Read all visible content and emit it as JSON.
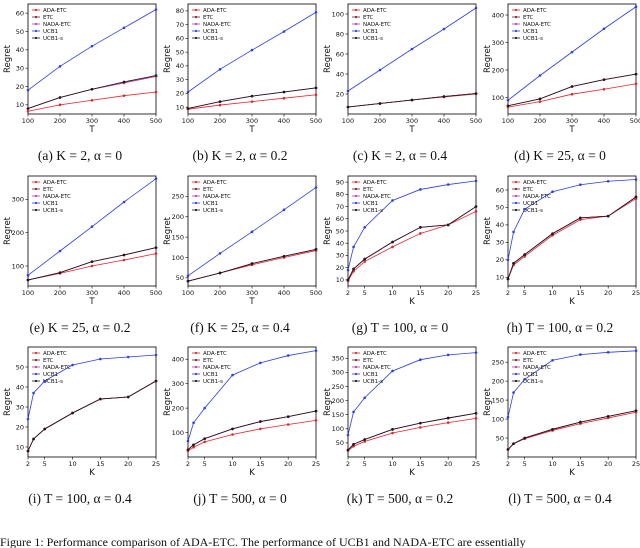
{
  "figure": {
    "footer_text": "Figure 1: Performance comparison of ADA-ETC. The performance of UCB1 and NADA-ETC are essentially"
  },
  "colors": {
    "ADA-ETC": "#e3242b",
    "ETC": "#7a1f2b",
    "NADA-ETC": "#c03aa6",
    "UCB1": "#2b3ee6",
    "UCB1-s": "#1a1a1a"
  },
  "chart_data": [
    {
      "type": "line",
      "panel": "a",
      "caption": "(a) K = 2, α = 0",
      "xlabel": "T",
      "ylabel": "Regret",
      "legend_position": "top-left",
      "x": [
        100,
        200,
        300,
        400,
        500
      ],
      "xlim": [
        100,
        500
      ],
      "ylim": [
        5,
        65
      ],
      "xticks": [
        100,
        200,
        300,
        400,
        500
      ],
      "yticks": [
        10,
        20,
        30,
        40,
        50,
        60
      ],
      "series": [
        {
          "name": "ADA-ETC",
          "values": [
            6.5,
            10,
            12.5,
            15,
            17
          ]
        },
        {
          "name": "ETC",
          "values": [
            8,
            14,
            18.5,
            22,
            25.5
          ]
        },
        {
          "name": "NADA-ETC",
          "values": [
            8,
            14,
            18.5,
            22,
            25.5
          ]
        },
        {
          "name": "UCB1",
          "values": [
            18,
            31,
            42,
            52,
            62
          ]
        },
        {
          "name": "UCB1-s",
          "values": [
            8,
            14,
            18.5,
            22.5,
            26
          ]
        }
      ]
    },
    {
      "type": "line",
      "panel": "b",
      "caption": "(b) K = 2, α = 0.2",
      "xlabel": "T",
      "ylabel": "Regret",
      "legend_position": "top-left",
      "x": [
        100,
        200,
        300,
        400,
        500
      ],
      "xlim": [
        100,
        500
      ],
      "ylim": [
        5,
        85
      ],
      "xticks": [
        100,
        200,
        300,
        400,
        500
      ],
      "yticks": [
        10,
        20,
        30,
        40,
        50,
        60,
        70,
        80
      ],
      "series": [
        {
          "name": "ADA-ETC",
          "values": [
            8.5,
            11.5,
            14,
            16.5,
            19
          ]
        },
        {
          "name": "ETC",
          "values": [
            9,
            14,
            18,
            21,
            24
          ]
        },
        {
          "name": "NADA-ETC",
          "values": [
            9,
            14,
            18,
            21,
            24
          ]
        },
        {
          "name": "UCB1",
          "values": [
            21,
            37.5,
            51.5,
            65,
            79
          ]
        },
        {
          "name": "UCB1-s",
          "values": [
            9,
            14,
            18,
            21,
            24
          ]
        }
      ]
    },
    {
      "type": "line",
      "panel": "c",
      "caption": "(c) K = 2, α = 0.4",
      "xlabel": "T",
      "ylabel": "Regret",
      "legend_position": "top-left",
      "x": [
        100,
        200,
        300,
        400,
        500
      ],
      "xlim": [
        100,
        500
      ],
      "ylim": [
        0,
        110
      ],
      "xticks": [
        100,
        200,
        300,
        400,
        500
      ],
      "yticks": [
        20,
        40,
        60,
        80,
        100
      ],
      "series": [
        {
          "name": "ADA-ETC",
          "values": [
            7,
            10.5,
            14,
            17,
            20
          ]
        },
        {
          "name": "ETC",
          "values": [
            7,
            10.5,
            14,
            17.5,
            20.5
          ]
        },
        {
          "name": "NADA-ETC",
          "values": [
            7,
            10.5,
            14,
            17.5,
            20.5
          ]
        },
        {
          "name": "UCB1",
          "values": [
            23,
            44,
            65,
            85,
            106
          ]
        },
        {
          "name": "UCB1-s",
          "values": [
            7,
            10.5,
            14,
            17.5,
            20.5
          ]
        }
      ]
    },
    {
      "type": "line",
      "panel": "d",
      "caption": "(d) K = 25, α = 0",
      "xlabel": "T",
      "ylabel": "Regret",
      "legend_position": "top-left",
      "x": [
        100,
        200,
        300,
        400,
        500
      ],
      "xlim": [
        100,
        500
      ],
      "ylim": [
        40,
        440
      ],
      "xticks": [
        100,
        200,
        300,
        400,
        500
      ],
      "yticks": [
        100,
        200,
        300,
        400
      ],
      "series": [
        {
          "name": "ADA-ETC",
          "values": [
            65,
            85,
            112,
            130,
            150
          ]
        },
        {
          "name": "ETC",
          "values": [
            70,
            95,
            140,
            165,
            185
          ]
        },
        {
          "name": "NADA-ETC",
          "values": [
            70,
            95,
            140,
            165,
            185
          ]
        },
        {
          "name": "UCB1",
          "values": [
            90,
            180,
            265,
            350,
            430
          ]
        },
        {
          "name": "UCB1-s",
          "values": [
            70,
            95,
            140,
            165,
            185
          ]
        }
      ]
    },
    {
      "type": "line",
      "panel": "e",
      "caption": "(e) K = 25, α = 0.2",
      "xlabel": "T",
      "ylabel": "Regret",
      "legend_position": "top-left",
      "x": [
        100,
        200,
        300,
        400,
        500
      ],
      "xlim": [
        100,
        500
      ],
      "ylim": [
        40,
        370
      ],
      "xticks": [
        100,
        200,
        300,
        400,
        500
      ],
      "yticks": [
        100,
        200,
        300
      ],
      "series": [
        {
          "name": "ADA-ETC",
          "values": [
            58,
            78,
            100,
            118,
            137
          ]
        },
        {
          "name": "ETC",
          "values": [
            58,
            80,
            113,
            133,
            155
          ]
        },
        {
          "name": "NADA-ETC",
          "values": [
            58,
            80,
            113,
            133,
            155
          ]
        },
        {
          "name": "UCB1",
          "values": [
            72,
            145,
            218,
            292,
            362
          ]
        },
        {
          "name": "UCB1-s",
          "values": [
            58,
            80,
            113,
            133,
            155
          ]
        }
      ]
    },
    {
      "type": "line",
      "panel": "f",
      "caption": "(f) K = 25, α = 0.4",
      "xlabel": "T",
      "ylabel": "Regret",
      "legend_position": "top-left",
      "x": [
        100,
        200,
        300,
        400,
        500
      ],
      "xlim": [
        100,
        500
      ],
      "ylim": [
        30,
        300
      ],
      "xticks": [
        100,
        200,
        300,
        400,
        500
      ],
      "yticks": [
        50,
        100,
        150,
        200,
        250
      ],
      "series": [
        {
          "name": "ADA-ETC",
          "values": [
            42,
            62,
            82,
            100,
            117
          ]
        },
        {
          "name": "ETC",
          "values": [
            42,
            62,
            85,
            103,
            120
          ]
        },
        {
          "name": "NADA-ETC",
          "values": [
            42,
            62,
            85,
            103,
            120
          ]
        },
        {
          "name": "UCB1",
          "values": [
            55,
            110,
            163,
            217,
            272
          ]
        },
        {
          "name": "UCB1-s",
          "values": [
            42,
            62,
            85,
            103,
            120
          ]
        }
      ]
    },
    {
      "type": "line",
      "panel": "g",
      "caption": "(g) T = 100, α = 0",
      "xlabel": "K",
      "ylabel": "Regret",
      "legend_position": "top-left",
      "x": [
        2,
        3,
        5,
        10,
        15,
        20,
        25
      ],
      "xlim": [
        2,
        25
      ],
      "ylim": [
        5,
        95
      ],
      "xticks": [
        2,
        5,
        10,
        15,
        20,
        25
      ],
      "yticks": [
        10,
        20,
        30,
        40,
        50,
        60,
        70,
        80,
        90
      ],
      "series": [
        {
          "name": "ADA-ETC",
          "values": [
            9,
            17,
            25,
            37,
            48,
            55,
            66
          ]
        },
        {
          "name": "ETC",
          "values": [
            10,
            19,
            27,
            41,
            53,
            55,
            70
          ]
        },
        {
          "name": "NADA-ETC",
          "values": [
            10,
            19,
            27,
            41,
            53,
            55,
            70
          ]
        },
        {
          "name": "UCB1",
          "values": [
            18,
            37,
            53,
            75,
            84,
            88,
            91
          ]
        },
        {
          "name": "UCB1-s",
          "values": [
            10,
            19,
            27,
            41,
            53,
            55,
            70
          ]
        }
      ]
    },
    {
      "type": "line",
      "panel": "h",
      "caption": "(h) T = 100, α = 0.2",
      "xlabel": "K",
      "ylabel": "Regret",
      "legend_position": "top-left",
      "x": [
        2,
        3,
        5,
        10,
        15,
        20,
        25
      ],
      "xlim": [
        2,
        25
      ],
      "ylim": [
        5,
        68
      ],
      "xticks": [
        2,
        5,
        10,
        15,
        20,
        25
      ],
      "yticks": [
        10,
        20,
        30,
        40,
        50,
        60
      ],
      "series": [
        {
          "name": "ADA-ETC",
          "values": [
            9,
            17,
            22,
            34,
            43,
            45,
            55
          ]
        },
        {
          "name": "ETC",
          "values": [
            9,
            18,
            23,
            35,
            44,
            45,
            56
          ]
        },
        {
          "name": "NADA-ETC",
          "values": [
            9,
            18,
            23,
            35,
            44,
            45,
            56
          ]
        },
        {
          "name": "UCB1",
          "values": [
            20,
            36,
            49,
            59,
            63,
            65,
            66
          ]
        },
        {
          "name": "UCB1-s",
          "values": [
            9,
            18,
            23,
            35,
            44,
            45,
            56
          ]
        }
      ]
    },
    {
      "type": "line",
      "panel": "i",
      "caption": "(i) T = 100, α = 0.4",
      "xlabel": "K",
      "ylabel": "Regret",
      "legend_position": "top-left",
      "x": [
        2,
        3,
        5,
        10,
        15,
        20,
        25
      ],
      "xlim": [
        2,
        25
      ],
      "ylim": [
        5,
        60
      ],
      "xticks": [
        2,
        5,
        10,
        15,
        20,
        25
      ],
      "yticks": [
        10,
        20,
        30,
        40,
        50
      ],
      "series": [
        {
          "name": "ADA-ETC",
          "values": [
            8,
            14,
            19,
            27,
            34,
            35,
            43
          ]
        },
        {
          "name": "ETC",
          "values": [
            8,
            14,
            19,
            27,
            34,
            35,
            43
          ]
        },
        {
          "name": "NADA-ETC",
          "values": [
            8,
            14,
            19,
            27,
            34,
            35,
            43
          ]
        },
        {
          "name": "UCB1",
          "values": [
            24,
            37,
            43,
            51,
            54,
            55,
            56
          ]
        },
        {
          "name": "UCB1-s",
          "values": [
            8,
            14,
            19,
            27,
            34,
            35,
            43
          ]
        }
      ]
    },
    {
      "type": "line",
      "panel": "j",
      "caption": "(j) T = 500, α = 0",
      "xlabel": "K",
      "ylabel": "Regret",
      "legend_position": "top-left",
      "x": [
        2,
        3,
        5,
        10,
        15,
        20,
        25
      ],
      "xlim": [
        2,
        25
      ],
      "ylim": [
        0,
        450
      ],
      "xticks": [
        2,
        5,
        10,
        15,
        20,
        25
      ],
      "yticks": [
        100,
        200,
        300,
        400
      ],
      "series": [
        {
          "name": "ADA-ETC",
          "values": [
            25,
            40,
            62,
            92,
            115,
            133,
            150
          ]
        },
        {
          "name": "ETC",
          "values": [
            30,
            50,
            75,
            115,
            145,
            165,
            188
          ]
        },
        {
          "name": "NADA-ETC",
          "values": [
            30,
            50,
            75,
            115,
            145,
            165,
            188
          ]
        },
        {
          "name": "UCB1",
          "values": [
            65,
            140,
            200,
            335,
            385,
            415,
            435
          ]
        },
        {
          "name": "UCB1-s",
          "values": [
            30,
            50,
            75,
            115,
            145,
            165,
            188
          ]
        }
      ]
    },
    {
      "type": "line",
      "panel": "k",
      "caption": "(k) T = 500, α = 0.2",
      "xlabel": "K",
      "ylabel": "Regret",
      "legend_position": "top-left",
      "x": [
        2,
        3,
        5,
        10,
        15,
        20,
        25
      ],
      "xlim": [
        2,
        25
      ],
      "ylim": [
        0,
        390
      ],
      "xticks": [
        2,
        5,
        10,
        15,
        20,
        25
      ],
      "yticks": [
        50,
        100,
        150,
        200,
        250,
        300,
        350
      ],
      "series": [
        {
          "name": "ADA-ETC",
          "values": [
            22,
            38,
            55,
            85,
            105,
            122,
            137
          ]
        },
        {
          "name": "ETC",
          "values": [
            25,
            45,
            62,
            98,
            120,
            138,
            155
          ]
        },
        {
          "name": "NADA-ETC",
          "values": [
            25,
            45,
            62,
            98,
            120,
            138,
            155
          ]
        },
        {
          "name": "UCB1",
          "values": [
            78,
            160,
            210,
            305,
            345,
            362,
            370
          ]
        },
        {
          "name": "UCB1-s",
          "values": [
            25,
            45,
            62,
            98,
            120,
            138,
            155
          ]
        }
      ]
    },
    {
      "type": "line",
      "panel": "l",
      "caption": "(l) T = 500, α = 0.4",
      "xlabel": "K",
      "ylabel": "Regret",
      "legend_position": "top-left",
      "x": [
        2,
        3,
        5,
        10,
        15,
        20,
        25
      ],
      "xlim": [
        2,
        25
      ],
      "ylim": [
        0,
        290
      ],
      "xticks": [
        2,
        5,
        10,
        15,
        20,
        25
      ],
      "yticks": [
        50,
        100,
        150,
        200,
        250
      ],
      "series": [
        {
          "name": "ADA-ETC",
          "values": [
            20,
            35,
            48,
            70,
            88,
            103,
            118
          ]
        },
        {
          "name": "ETC",
          "values": [
            20,
            35,
            50,
            73,
            92,
            107,
            122
          ]
        },
        {
          "name": "NADA-ETC",
          "values": [
            20,
            35,
            50,
            73,
            92,
            107,
            122
          ]
        },
        {
          "name": "UCB1",
          "values": [
            105,
            170,
            205,
            255,
            270,
            276,
            280
          ]
        },
        {
          "name": "UCB1-s",
          "values": [
            20,
            35,
            50,
            73,
            92,
            107,
            122
          ]
        }
      ]
    }
  ]
}
